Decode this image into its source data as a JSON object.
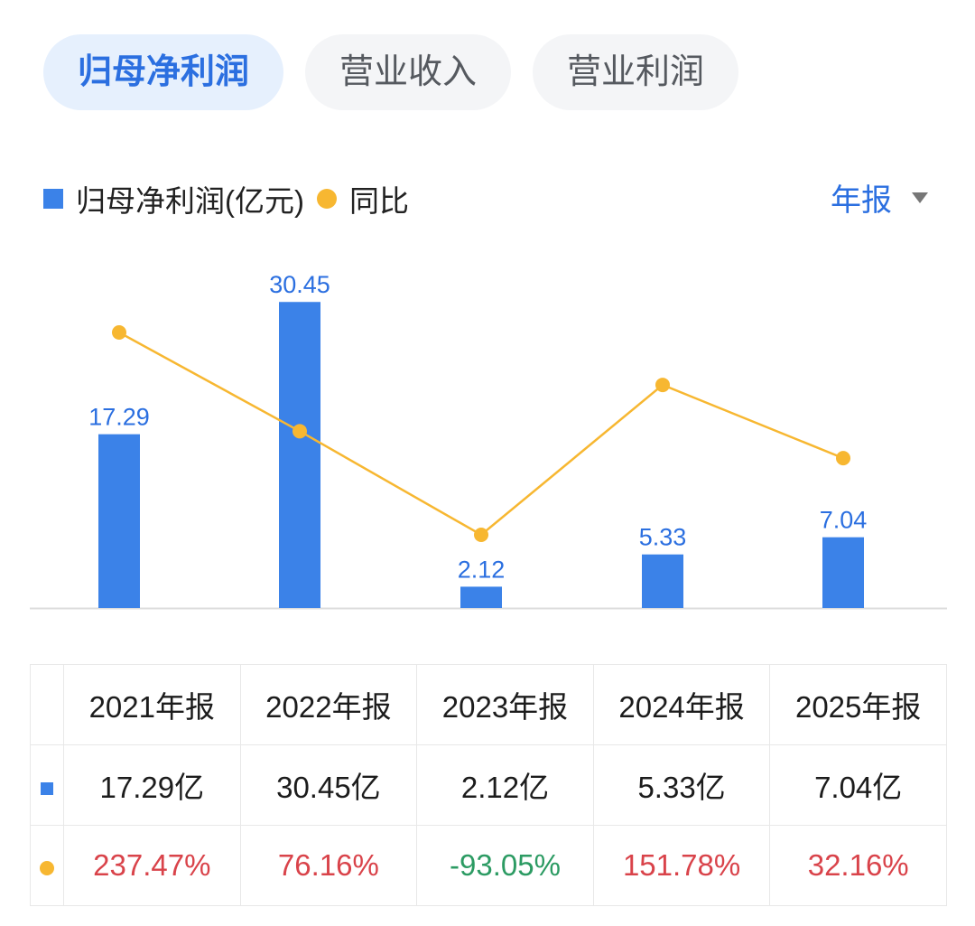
{
  "tabs": [
    {
      "label": "归母净利润",
      "active": true
    },
    {
      "label": "营业收入",
      "active": false
    },
    {
      "label": "营业利润",
      "active": false
    }
  ],
  "legend": {
    "bar_label": "归母净利润(亿元)",
    "line_label": "同比"
  },
  "period_selector": {
    "label": "年报",
    "icon": "triangle-down-icon"
  },
  "colors": {
    "bar": "#3b82e8",
    "line": "#f7b731",
    "positive": "#d9434a",
    "negative": "#2c9b63",
    "accent": "#2b6fe0"
  },
  "chart_data": {
    "type": "bar",
    "categories": [
      "2021年报",
      "2022年报",
      "2023年报",
      "2024年报",
      "2025年报"
    ],
    "series": [
      {
        "name": "归母净利润(亿元)",
        "type": "bar",
        "values": [
          17.29,
          30.45,
          2.12,
          5.33,
          7.04
        ]
      },
      {
        "name": "同比",
        "type": "line",
        "values": [
          237.47,
          76.16,
          -93.05,
          151.78,
          32.16
        ]
      }
    ],
    "data_labels": [
      "17.29",
      "30.45",
      "2.12",
      "5.33",
      "7.04"
    ]
  },
  "table": {
    "headers": [
      "2021年报",
      "2022年报",
      "2023年报",
      "2024年报",
      "2025年报"
    ],
    "values": [
      "17.29亿",
      "30.45亿",
      "2.12亿",
      "5.33亿",
      "7.04亿"
    ],
    "yoy": [
      "237.47%",
      "76.16%",
      "-93.05%",
      "151.78%",
      "32.16%"
    ]
  }
}
